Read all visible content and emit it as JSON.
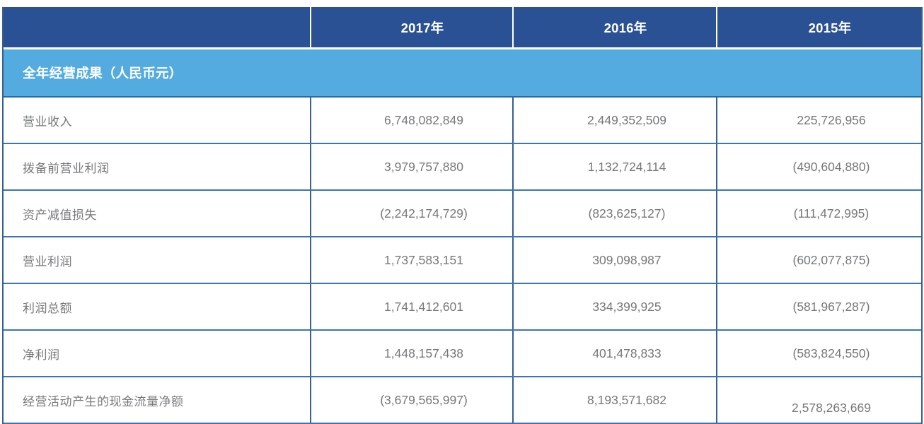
{
  "table": {
    "header": {
      "columns": [
        "2017年",
        "2016年",
        "2015年"
      ]
    },
    "section": {
      "title": "全年经营成果（人民币元）"
    },
    "rows": [
      {
        "label": "营业收入",
        "values": [
          "6,748,082,849",
          "2,449,352,509",
          "225,726,956"
        ]
      },
      {
        "label": "拨备前营业利润",
        "values": [
          "3,979,757,880",
          "1,132,724,114",
          "(490,604,880)"
        ]
      },
      {
        "label": "资产减值损失",
        "values": [
          "(2,242,174,729)",
          "(823,625,127)",
          "(111,472,995)"
        ]
      },
      {
        "label": "营业利润",
        "values": [
          "1,737,583,151",
          "309,098,987",
          "(602,077,875)"
        ]
      },
      {
        "label": "利润总额",
        "values": [
          "1,741,412,601",
          "334,399,925",
          "(581,967,287)"
        ]
      },
      {
        "label": "净利润",
        "values": [
          "1,448,157,438",
          "401,478,833",
          "(583,824,550)"
        ]
      },
      {
        "label": "经营活动产生的现金流量净额",
        "values": [
          "(3,679,565,997)",
          "8,193,571,682",
          "2,578,263,669"
        ]
      }
    ],
    "colors": {
      "header_bg": "#2A5193",
      "section_bg": "#54ABDF",
      "vertical_divider": "#35608F",
      "horizontal_divider": "#3A76B4",
      "body_text": "#77787B",
      "header_text": "#FFFFFF"
    }
  }
}
